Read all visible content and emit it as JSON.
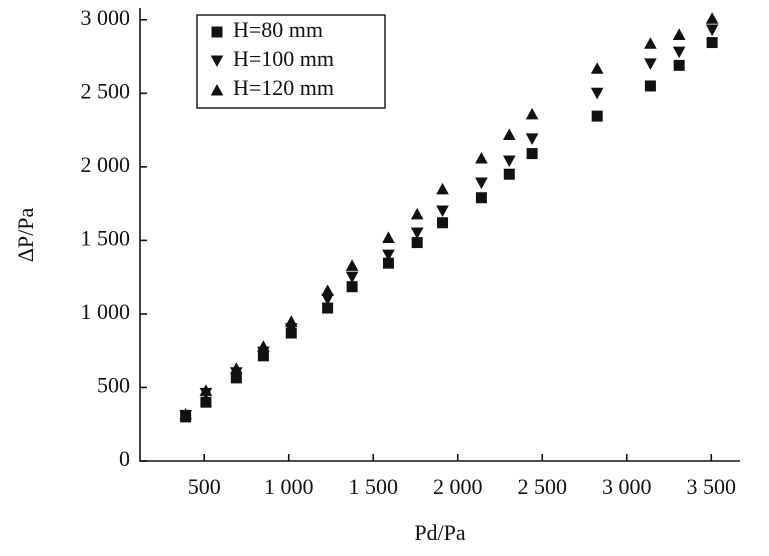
{
  "chart_data": {
    "type": "scatter",
    "x_label": "Pd/Pa",
    "y_label": "ΔP/Pa",
    "xlim": [
      120,
      3670
    ],
    "ylim": [
      0,
      3080
    ],
    "xticks": [
      500,
      {
        "value": 1000,
        "label": "1 000"
      },
      {
        "value": 1500,
        "label": "1 500"
      },
      {
        "value": 2000,
        "label": "2 000"
      },
      {
        "value": 2500,
        "label": "2 500"
      },
      {
        "value": 3000,
        "label": "3 000"
      },
      {
        "value": 3500,
        "label": "3 500"
      }
    ],
    "yticks": [
      0,
      500,
      {
        "value": 1000,
        "label": "1 000"
      },
      {
        "value": 1500,
        "label": "1 500"
      },
      {
        "value": 2000,
        "label": "2 000"
      },
      {
        "value": 2500,
        "label": "2 500"
      },
      {
        "value": 3000,
        "label": "3 000"
      }
    ],
    "x": [
      390,
      510,
      690,
      850,
      1015,
      1230,
      1375,
      1590,
      1760,
      1910,
      2140,
      2305,
      2440,
      2825,
      3140,
      3310,
      3505
    ],
    "legend": "upper left",
    "series": [
      {
        "name": "H=80 mm",
        "marker": "square",
        "color": "#111111",
        "values": [
          300,
          400,
          565,
          715,
          870,
          1040,
          1185,
          1345,
          1485,
          1620,
          1790,
          1950,
          2090,
          2345,
          2550,
          2690,
          2845
        ]
      },
      {
        "name": "H=100 mm",
        "marker": "triangle-down",
        "color": "#111111",
        "values": [
          310,
          460,
          600,
          740,
          900,
          1100,
          1250,
          1400,
          1550,
          1700,
          1890,
          2040,
          2190,
          2500,
          2700,
          2780,
          2930
        ]
      },
      {
        "name": "H=120 mm",
        "marker": "triangle-up",
        "color": "#111111",
        "values": [
          320,
          480,
          630,
          780,
          950,
          1160,
          1330,
          1520,
          1680,
          1850,
          2060,
          2220,
          2360,
          2670,
          2840,
          2900,
          3010
        ]
      }
    ]
  }
}
